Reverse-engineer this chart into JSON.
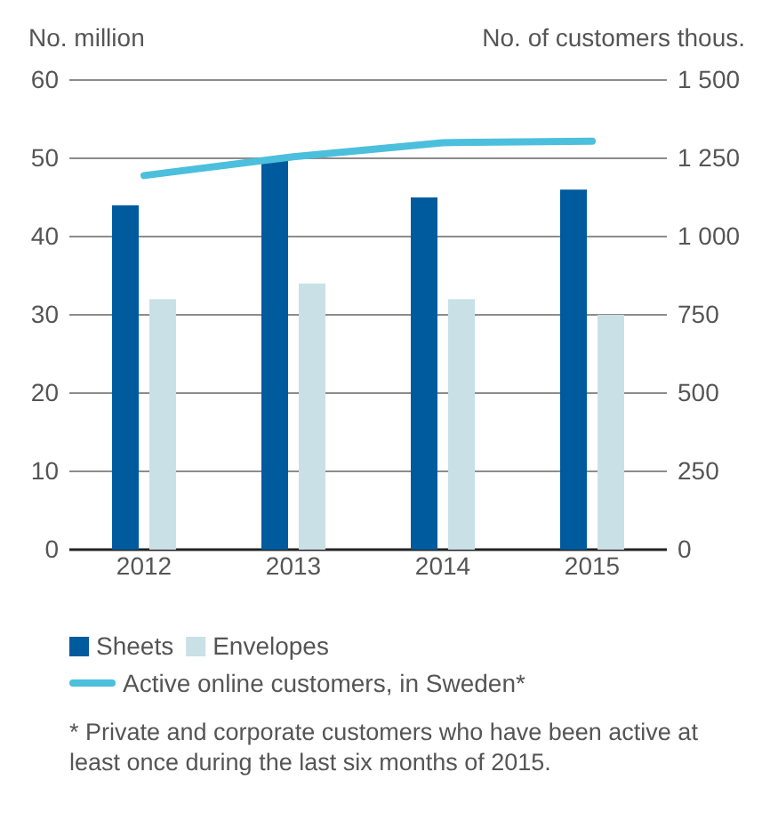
{
  "chart_data": {
    "type": "bar",
    "ylabel": "No. million",
    "y2label": "No. of customers thous.",
    "categories": [
      "2012",
      "2013",
      "2014",
      "2015"
    ],
    "series": [
      {
        "name": "Sheets",
        "color": "#005a9e",
        "values": [
          44,
          50,
          45,
          46
        ]
      },
      {
        "name": "Envelopes",
        "color": "#c9e0e6",
        "values": [
          32,
          34,
          32,
          30
        ]
      },
      {
        "name": "Active online customers, in Sweden*",
        "type": "line",
        "axis": "y2",
        "color": "#4bbfdc",
        "values": [
          1195,
          1255,
          1300,
          1305
        ]
      }
    ],
    "ylim": [
      0,
      60
    ],
    "yticks": [
      0,
      10,
      20,
      30,
      40,
      50,
      60
    ],
    "y2lim": [
      0,
      1500
    ],
    "y2ticks": [
      0,
      250,
      500,
      750,
      {
        "value": 1000,
        "label": "1 000"
      },
      {
        "value": 1250,
        "label": "1 250"
      },
      {
        "value": 1500,
        "label": "1 500"
      }
    ],
    "grid": "y",
    "legend": "bottom",
    "marker": "none",
    "annotations": [
      "* Private and corporate customers who have been active at least once during the last six months of 2015."
    ]
  }
}
